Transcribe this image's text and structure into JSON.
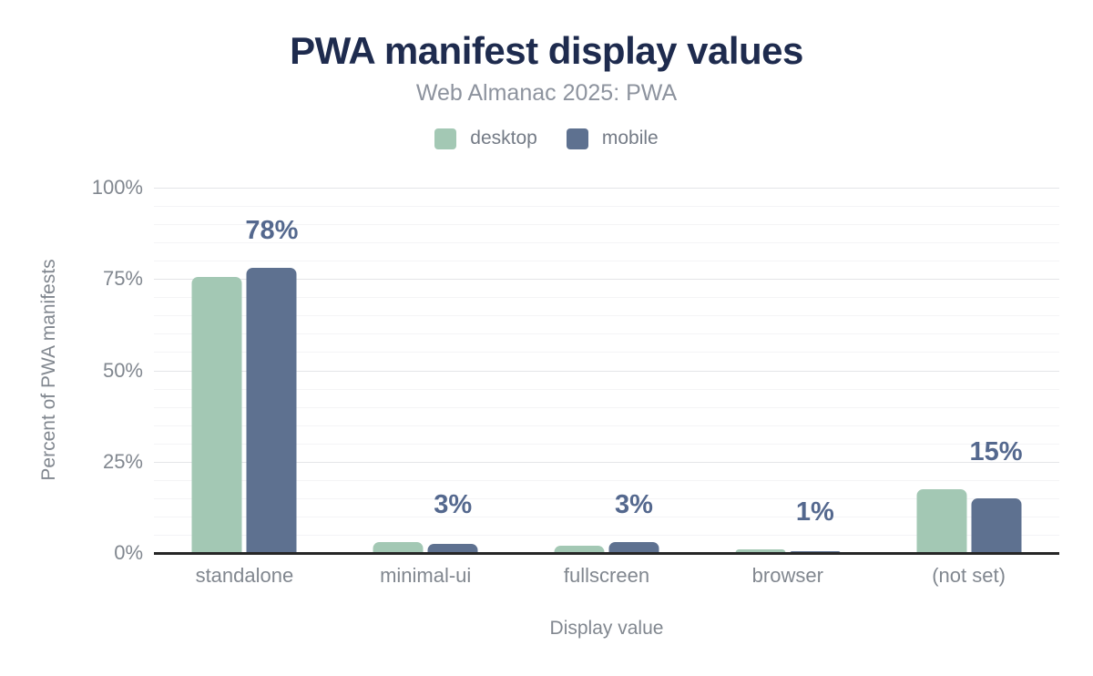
{
  "header": {
    "title": "PWA manifest display values",
    "subtitle": "Web Almanac 2025: PWA"
  },
  "chart_data": {
    "type": "bar",
    "title": "PWA manifest display values",
    "subtitle": "Web Almanac 2025: PWA",
    "categories": [
      "standalone",
      "minimal-ui",
      "fullscreen",
      "browser",
      "(not set)"
    ],
    "series": [
      {
        "name": "desktop",
        "color": "#a3c8b4",
        "values": [
          75.5,
          3,
          2,
          1,
          17.5
        ]
      },
      {
        "name": "mobile",
        "color": "#5e7190",
        "values": [
          78,
          2.5,
          3,
          0.5,
          15
        ]
      }
    ],
    "bar_labels": [
      "78%",
      "3%",
      "3%",
      "1%",
      "15%"
    ],
    "bar_label_series": "mobile",
    "xlabel": "Display value",
    "ylabel": "Percent of PWA manifests",
    "ylim": [
      0,
      100
    ],
    "yticks": [
      0,
      25,
      50,
      75,
      100
    ],
    "ytick_labels": [
      "0%",
      "25%",
      "50%",
      "75%",
      "100%"
    ],
    "minor_grid_step": 5,
    "grid": true,
    "legend_position": "top"
  },
  "colors": {
    "background": "#ffffff",
    "title": "#1e2b4e",
    "subtitle": "#8d939e",
    "legend_text": "#747b86",
    "axis_text": "#81878f",
    "data_label": "#54688e",
    "grid_major": "#e4e5e8",
    "grid_minor": "#f4f4f6",
    "axis_line": "#262626",
    "desktop_bar": "#a3c8b4",
    "mobile_bar": "#5e7190"
  }
}
